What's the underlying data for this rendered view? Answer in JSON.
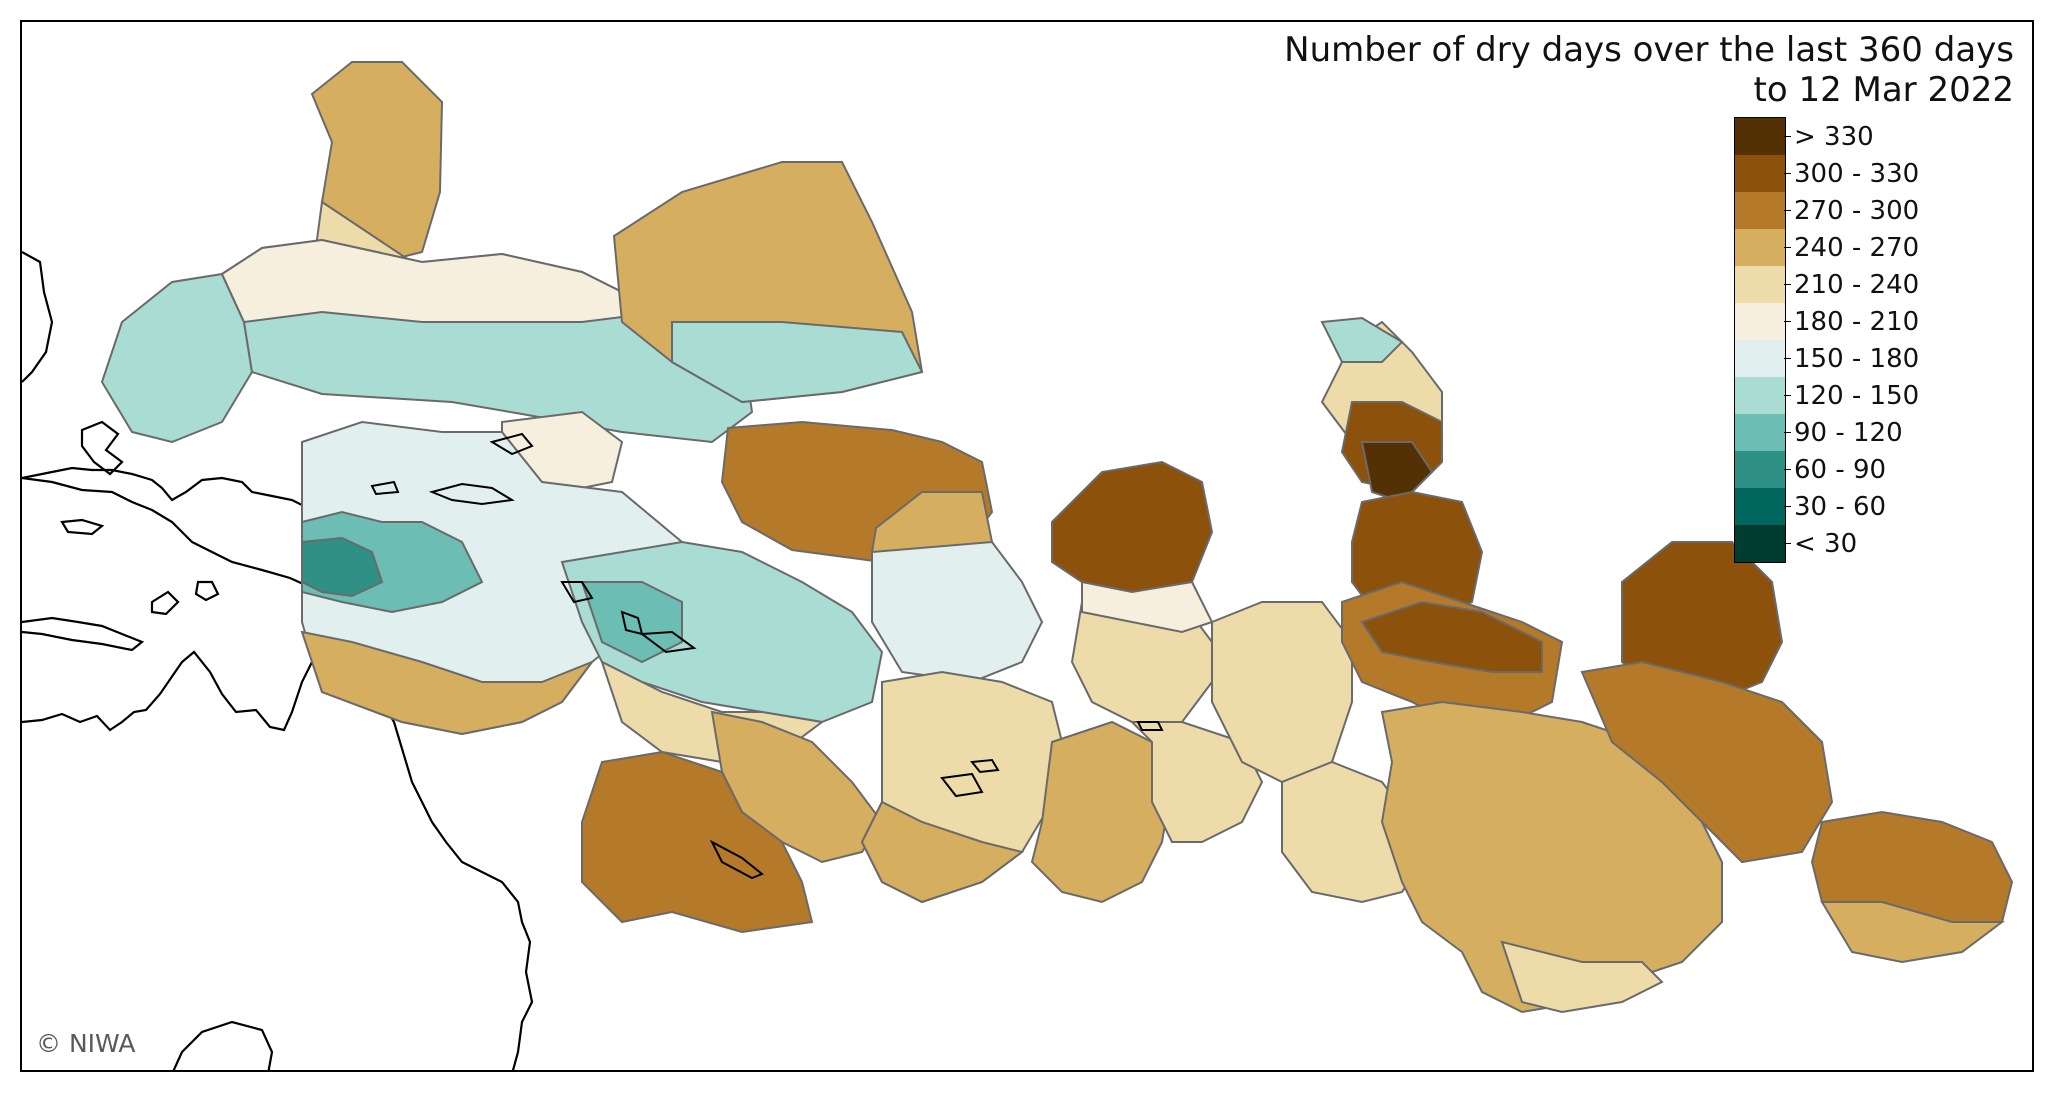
{
  "map": {
    "title_line1": "Number of dry days over the last 360 days",
    "title_line2": "to 12 Mar 2022",
    "credit": "© NIWA",
    "legend": [
      {
        "label": "> 330",
        "color": "#543005"
      },
      {
        "label": "300 - 330",
        "color": "#8c510a"
      },
      {
        "label": "270 - 300",
        "color": "#b5792a"
      },
      {
        "label": "240 - 270",
        "color": "#d6ae60"
      },
      {
        "label": "210 - 240",
        "color": "#eddcaa"
      },
      {
        "label": "180 - 210",
        "color": "#f6efdd"
      },
      {
        "label": "150 - 180",
        "color": "#e1f0ee"
      },
      {
        "label": "120 - 150",
        "color": "#a9dcd3"
      },
      {
        "label": "90 - 120",
        "color": "#6cbdb3"
      },
      {
        "label": "60 - 90",
        "color": "#2f9086"
      },
      {
        "label": "30 - 60",
        "color": "#01665e"
      },
      {
        "label": "< 30",
        "color": "#003c30"
      }
    ]
  }
}
